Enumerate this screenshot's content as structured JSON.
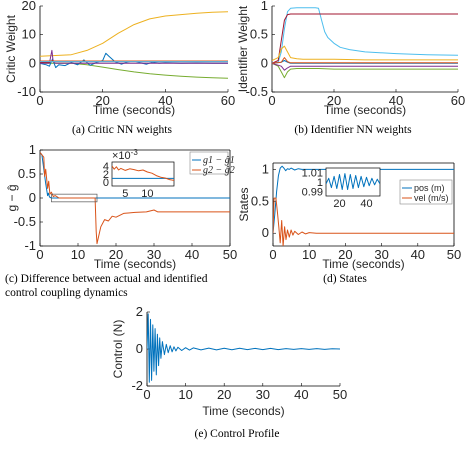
{
  "captions": {
    "a": "(a) Critic NN weights",
    "b": "(b) Identifier NN weights",
    "c_line1": "(c) Difference between actual and identified",
    "c_line2": "control coupling dynamics",
    "d": "(d) States",
    "e": "(e) Control Profile"
  },
  "colors": {
    "blue": "#0072BD",
    "orange": "#D95319",
    "yellow": "#EDB120",
    "purple": "#7E2F8E",
    "green": "#77AC30",
    "cyan": "#4DBEEE",
    "red": "#A2142F"
  },
  "chart_data": [
    {
      "id": "a",
      "type": "line",
      "title": "",
      "xlabel": "Time (seconds)",
      "ylabel": "Critic Weight",
      "xlim": [
        0,
        60
      ],
      "ylim": [
        -10,
        20
      ],
      "xticks": [
        0,
        20,
        40,
        60
      ],
      "yticks": [
        -10,
        0,
        10,
        20
      ],
      "series": [
        {
          "color": "yellow",
          "x": [
            0,
            10,
            15,
            20,
            25,
            30,
            35,
            40,
            45,
            50,
            55,
            60
          ],
          "y": [
            2.5,
            3,
            4.5,
            7,
            10.5,
            13.5,
            15.5,
            16.5,
            17,
            17.5,
            17.8,
            18
          ]
        },
        {
          "color": "green",
          "x": [
            0,
            10,
            15,
            20,
            25,
            30,
            35,
            40,
            45,
            50,
            55,
            60
          ],
          "y": [
            0,
            0,
            -0.5,
            -1.3,
            -2.2,
            -3,
            -3.6,
            -4.1,
            -4.5,
            -4.8,
            -5,
            -5.2
          ]
        },
        {
          "color": "blue",
          "x": [
            0,
            2,
            3,
            4,
            5,
            6,
            8,
            10,
            12,
            14,
            16,
            18,
            20,
            21,
            22,
            24,
            26,
            28,
            30,
            32,
            34,
            36,
            38,
            40,
            45,
            50,
            55,
            60
          ],
          "y": [
            0,
            -0.5,
            -1,
            1.5,
            -1.5,
            -0.5,
            -0.8,
            0.3,
            -0.5,
            1.2,
            -0.7,
            0.3,
            1,
            3.5,
            2.5,
            0.5,
            -0.3,
            0.5,
            0.8,
            0.2,
            -0.3,
            0.4,
            0,
            0.2,
            0,
            0.1,
            0,
            0
          ]
        },
        {
          "color": "purple",
          "x": [
            0,
            3,
            3.8,
            4.2,
            5,
            10,
            20,
            30,
            40,
            50,
            60
          ],
          "y": [
            0,
            0,
            4.5,
            0.5,
            0,
            0,
            0,
            0,
            0,
            0,
            0
          ]
        },
        {
          "color": "red",
          "x": [
            0,
            3,
            4,
            5,
            10,
            20,
            30,
            40,
            50,
            60
          ],
          "y": [
            0.3,
            0.3,
            1,
            0.6,
            0.6,
            0.6,
            0.6,
            0.6,
            0.6,
            0.6
          ]
        },
        {
          "color": "orange",
          "x": [
            0,
            10,
            20,
            30,
            40,
            50,
            60
          ],
          "y": [
            0.8,
            0.8,
            0.8,
            0.8,
            0.8,
            0.8,
            0.8
          ]
        },
        {
          "color": "cyan",
          "x": [
            0,
            10,
            20,
            30,
            40,
            50,
            60
          ],
          "y": [
            0.6,
            0.6,
            0.6,
            0.6,
            0.6,
            0.6,
            0.6
          ]
        }
      ]
    },
    {
      "id": "b",
      "type": "line",
      "title": "",
      "xlabel": "Time (seconds)",
      "ylabel": "Identifier Weight",
      "xlim": [
        0,
        60
      ],
      "ylim": [
        -0.5,
        1
      ],
      "xticks": [
        0,
        20,
        40,
        60
      ],
      "yticks": [
        -0.5,
        0,
        0.5,
        1
      ],
      "series": [
        {
          "color": "cyan",
          "x": [
            0,
            2,
            3,
            4,
            5,
            6,
            8,
            10,
            12,
            14,
            15,
            16,
            17,
            18,
            20,
            22,
            25,
            30,
            40,
            50,
            60
          ],
          "y": [
            0,
            0.02,
            0.2,
            0.6,
            0.9,
            0.96,
            0.97,
            0.97,
            0.97,
            0.97,
            0.96,
            0.75,
            0.55,
            0.45,
            0.35,
            0.28,
            0.24,
            0.2,
            0.17,
            0.15,
            0.14
          ]
        },
        {
          "color": "red",
          "x": [
            0,
            2,
            3,
            4,
            5,
            6,
            8,
            10,
            20,
            30,
            40,
            50,
            60
          ],
          "y": [
            0,
            0.05,
            0.4,
            0.75,
            0.85,
            0.86,
            0.86,
            0.86,
            0.86,
            0.86,
            0.86,
            0.86,
            0.86
          ]
        },
        {
          "color": "yellow",
          "x": [
            0,
            2,
            3,
            4,
            5,
            6,
            8,
            10,
            15,
            20,
            30,
            40,
            50,
            60
          ],
          "y": [
            0.05,
            0.1,
            0.25,
            0.3,
            0.2,
            0.1,
            0.08,
            0.07,
            0.07,
            0.07,
            0.06,
            0.06,
            0.06,
            0.06
          ]
        },
        {
          "color": "green",
          "x": [
            0,
            2,
            3,
            4,
            5,
            6,
            8,
            10,
            15,
            20,
            30,
            40,
            50,
            60
          ],
          "y": [
            0,
            -0.05,
            -0.15,
            -0.25,
            -0.15,
            -0.1,
            -0.09,
            -0.09,
            -0.09,
            -0.1,
            -0.1,
            -0.1,
            -0.1,
            -0.1
          ]
        },
        {
          "color": "purple",
          "x": [
            0,
            3,
            4,
            5,
            6,
            8,
            10,
            20,
            30,
            40,
            50,
            60
          ],
          "y": [
            0,
            -0.05,
            -0.12,
            -0.08,
            -0.05,
            -0.05,
            -0.05,
            -0.05,
            -0.05,
            -0.05,
            -0.05,
            -0.05
          ]
        },
        {
          "color": "blue",
          "x": [
            0,
            3,
            4,
            5,
            6,
            10,
            20,
            30,
            40,
            50,
            60
          ],
          "y": [
            0,
            0.02,
            0.05,
            0.02,
            0,
            0,
            0,
            0,
            0,
            0,
            0
          ]
        },
        {
          "color": "orange",
          "x": [
            0,
            3,
            4,
            5,
            6,
            10,
            20,
            30,
            40,
            50,
            60
          ],
          "y": [
            0,
            0.02,
            0.1,
            0.03,
            0.01,
            0.01,
            0.01,
            0.01,
            0.01,
            0.01,
            0.01
          ]
        }
      ]
    },
    {
      "id": "c",
      "type": "line",
      "title": "",
      "xlabel": "Time (seconds)",
      "ylabel": "g − ĝ",
      "xlim": [
        0,
        50
      ],
      "ylim": [
        -1,
        1
      ],
      "xticks": [
        0,
        10,
        20,
        30,
        40,
        50
      ],
      "yticks": [
        -1,
        -0.5,
        0,
        0.5,
        1
      ],
      "legend_position": "top-right",
      "series": [
        {
          "name": "g1 − ĝ1",
          "color": "blue",
          "x": [
            0,
            0.5,
            1,
            1.5,
            2,
            2.2,
            2.5,
            3,
            4,
            5,
            10,
            14.8,
            15,
            20,
            30,
            40,
            50
          ],
          "y": [
            0.95,
            0.9,
            0.6,
            0.3,
            0.05,
            0.1,
            0.02,
            0,
            0,
            0,
            0,
            0,
            0,
            0,
            0,
            0,
            0
          ]
        },
        {
          "name": "g2 − ĝ2",
          "color": "orange",
          "x": [
            0,
            0.5,
            1,
            1.2,
            1.5,
            2,
            2.3,
            2.6,
            3,
            3.5,
            4,
            5,
            10,
            14.5,
            14.8,
            15,
            16,
            17,
            18,
            19,
            20,
            22,
            25,
            28,
            30,
            31,
            35,
            40,
            45,
            50
          ],
          "y": [
            0.95,
            0.9,
            0.85,
            0.45,
            0.6,
            0.2,
            0.35,
            0.08,
            0.12,
            0.03,
            0.05,
            0,
            0,
            0,
            -0.7,
            -0.95,
            -0.6,
            -0.45,
            -0.48,
            -0.38,
            -0.4,
            -0.32,
            -0.3,
            -0.29,
            -0.25,
            -0.29,
            -0.29,
            -0.29,
            -0.29,
            -0.29
          ]
        }
      ],
      "inset": {
        "multiplier_label": "×10",
        "multiplier_exp": "-3",
        "xticks": [
          5,
          10
        ],
        "yticks": [
          0,
          2,
          4
        ],
        "xlim": [
          2,
          16
        ],
        "ylim": [
          -1,
          5
        ],
        "series": [
          {
            "color": "blue",
            "x": [
              2,
              4,
              6,
              8,
              10,
              12,
              14,
              16
            ],
            "y": [
              0.9,
              0.9,
              0.9,
              0.9,
              0.9,
              0.9,
              0.9,
              0.9
            ]
          },
          {
            "color": "orange",
            "x": [
              2,
              2.5,
              3,
              3.5,
              4,
              5,
              6,
              7,
              8,
              9,
              10,
              11,
              12,
              13,
              14,
              15,
              16
            ],
            "y": [
              4,
              3.2,
              3.8,
              3,
              3.4,
              2.9,
              3.3,
              3.1,
              2.8,
              3,
              2.5,
              2.2,
              1.6,
              1.2,
              1,
              0.6,
              0.4
            ]
          }
        ]
      }
    },
    {
      "id": "d",
      "type": "line",
      "title": "",
      "xlabel": "Time (seconds)",
      "ylabel": "States",
      "xlim": [
        0,
        50
      ],
      "ylim": [
        -0.2,
        1.1
      ],
      "xticks": [
        0,
        10,
        20,
        30,
        40,
        50
      ],
      "yticks": [
        0,
        0.5,
        1
      ],
      "legend_position": "right",
      "series": [
        {
          "name": "pos (m)",
          "color": "blue",
          "x": [
            0,
            0.5,
            1,
            1.5,
            2,
            2.5,
            3,
            3.5,
            4,
            4.5,
            5,
            6,
            7,
            8,
            10,
            20,
            30,
            40,
            50
          ],
          "y": [
            0,
            0.3,
            0.65,
            0.9,
            1.02,
            1.05,
            1.02,
            0.98,
            1.01,
            1,
            1.02,
            0.99,
            1.01,
            1,
            1,
            1,
            1,
            1,
            1
          ]
        },
        {
          "name": "vel (m/s)",
          "color": "orange",
          "x": [
            0,
            0.3,
            0.8,
            1.2,
            1.6,
            2,
            2.4,
            2.8,
            3.2,
            3.6,
            4,
            4.5,
            5,
            5.5,
            6,
            7,
            8,
            9,
            10,
            12,
            15,
            20,
            30,
            40,
            50
          ],
          "y": [
            0,
            0.55,
            0.55,
            0.35,
            0.1,
            -0.15,
            0.2,
            -0.2,
            0.1,
            -0.1,
            0.05,
            -0.06,
            0.05,
            -0.03,
            0.03,
            -0.02,
            0.02,
            -0.01,
            0.01,
            0,
            0,
            0,
            0,
            0,
            0
          ]
        }
      ],
      "inset": {
        "xticks": [
          20,
          40
        ],
        "yticks": [
          0.99,
          1,
          1.01
        ],
        "xlim": [
          10,
          50
        ],
        "ylim": [
          0.985,
          1.015
        ],
        "series": [
          {
            "color": "blue",
            "x": [
              10,
              12,
              14,
              16,
              18,
              20,
              22,
              24,
              26,
              28,
              30,
              32,
              34,
              36,
              38,
              40,
              42,
              44,
              46,
              48,
              50
            ],
            "y": [
              0.998,
              1.004,
              0.994,
              1.006,
              0.993,
              1.008,
              0.992,
              1.009,
              0.992,
              1.008,
              0.993,
              1.007,
              0.994,
              1.006,
              0.995,
              1.005,
              0.996,
              1.004,
              0.997,
              1.003,
              0.998
            ]
          }
        ]
      }
    },
    {
      "id": "e",
      "type": "line",
      "title": "",
      "xlabel": "Time (seconds)",
      "ylabel": "Control (N)",
      "xlim": [
        0,
        50
      ],
      "ylim": [
        -2,
        2
      ],
      "xticks": [
        0,
        10,
        20,
        30,
        40,
        50
      ],
      "yticks": [
        -2,
        0,
        2
      ],
      "series": [
        {
          "color": "blue",
          "x": [
            0,
            0.3,
            0.6,
            0.9,
            1.2,
            1.5,
            1.8,
            2.1,
            2.4,
            2.7,
            3,
            3.3,
            3.6,
            4,
            4.5,
            5,
            5.5,
            6,
            6.5,
            7,
            7.5,
            8,
            9,
            10,
            11,
            12,
            14,
            16,
            18,
            20,
            22,
            24,
            26,
            28,
            30,
            32,
            34,
            36,
            38,
            40,
            42,
            44,
            46,
            48,
            50
          ],
          "y": [
            0,
            1.9,
            -1.8,
            1.6,
            -1.7,
            1.3,
            -1.2,
            1.1,
            -1.4,
            0.8,
            -0.9,
            0.6,
            -0.5,
            0.4,
            -0.3,
            0.25,
            -0.2,
            0.18,
            -0.15,
            0.12,
            -0.1,
            0.09,
            -0.08,
            0.07,
            -0.06,
            0.06,
            -0.05,
            0.05,
            -0.05,
            0.04,
            -0.04,
            0.04,
            -0.03,
            0.03,
            -0.03,
            0.03,
            -0.03,
            0.02,
            -0.02,
            0.02,
            -0.02,
            0.02,
            -0.02,
            0.01,
            0
          ]
        }
      ]
    }
  ]
}
